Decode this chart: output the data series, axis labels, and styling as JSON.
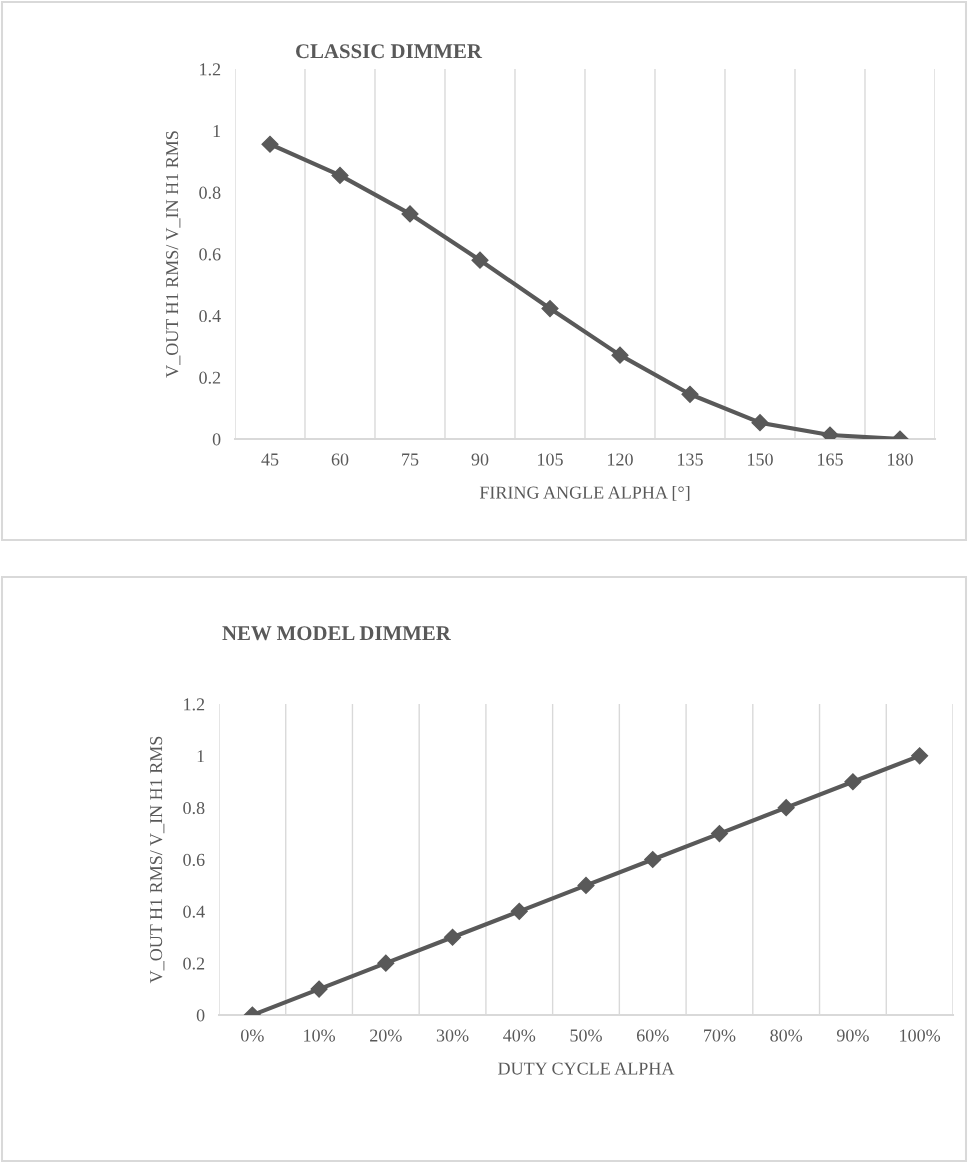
{
  "chart_data": [
    {
      "type": "line",
      "title": "CLASSIC DIMMER",
      "xlabel": "FIRING ANGLE ALPHA [°]",
      "ylabel": "V_OUT H1 RMS/ V_IN H1 RMS",
      "categories": [
        "45",
        "60",
        "75",
        "90",
        "105",
        "120",
        "135",
        "150",
        "165",
        "180"
      ],
      "series": [
        {
          "color": "#595959",
          "values": [
            0.956,
            0.855,
            0.73,
            0.58,
            0.423,
            0.272,
            0.145,
            0.053,
            0.013,
            0
          ]
        }
      ],
      "ylim": [
        0,
        1.2
      ],
      "yticks": [
        0,
        0.2,
        0.4,
        0.6,
        0.8,
        1,
        1.2
      ],
      "grid": "x",
      "marker": "diamond",
      "line_style": "solid"
    },
    {
      "type": "line",
      "title": "NEW MODEL DIMMER",
      "xlabel": "DUTY CYCLE ALPHA",
      "ylabel": "V_OUT H1 RMS/ V_IN H1 RMS",
      "categories": [
        "0%",
        "10%",
        "20%",
        "30%",
        "40%",
        "50%",
        "60%",
        "70%",
        "80%",
        "90%",
        "100%"
      ],
      "series": [
        {
          "color": "#595959",
          "values": [
            0,
            0.1,
            0.2,
            0.3,
            0.4,
            0.5,
            0.6,
            0.7,
            0.8,
            0.9,
            1
          ]
        }
      ],
      "ylim": [
        0,
        1.2
      ],
      "yticks": [
        0,
        0.2,
        0.4,
        0.6,
        0.8,
        1,
        1.2
      ],
      "grid": "x",
      "marker": "diamond",
      "line_style": "solid"
    }
  ]
}
